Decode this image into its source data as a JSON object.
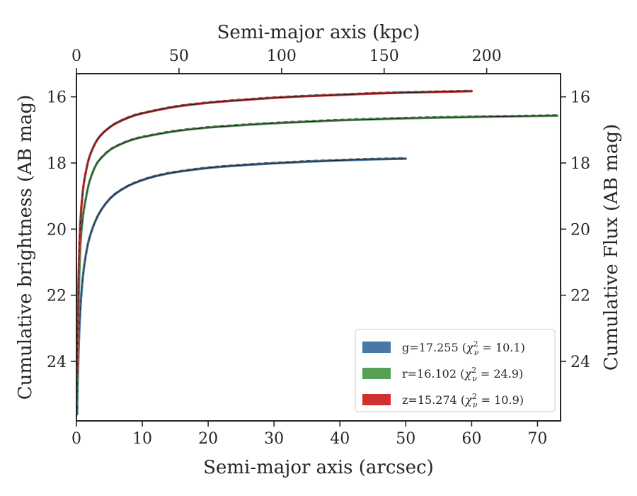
{
  "chart_data": {
    "type": "line",
    "title": "",
    "xlabel": "Semi-major axis (arcsec)",
    "xlabel_top": "Semi-major axis (kpc)",
    "ylabel": "Cumulative brightness (AB mag)",
    "ylabel_right": "Cumulative Flux (AB mag)",
    "xlim": [
      0,
      73.5
    ],
    "ylim": [
      25.8,
      15.3
    ],
    "y_inverted": true,
    "x_top_lim_kpc": [
      0,
      236
    ],
    "xticks": [
      0,
      10,
      20,
      30,
      40,
      50,
      60,
      70
    ],
    "xticks_top": [
      0,
      50,
      100,
      150,
      200
    ],
    "yticks": [
      16,
      18,
      20,
      22,
      24
    ],
    "grid": false,
    "legend_position": "lower-right",
    "series": [
      {
        "name": "g=17.255 (χ²ᵥ = 10.1)",
        "legend_main": "g=17.255 (",
        "legend_sup": "2",
        "legend_sub": "ν",
        "legend_tail": " = 10.1)",
        "color": "#4878a8",
        "x": [
          0.1,
          0.3,
          0.6,
          1,
          1.5,
          2,
          3,
          4,
          5,
          6,
          8,
          10,
          12,
          15,
          20,
          25,
          30,
          35,
          40,
          45,
          50
        ],
        "y": [
          25.6,
          23.8,
          22.4,
          21.4,
          20.7,
          20.25,
          19.7,
          19.35,
          19.1,
          18.92,
          18.68,
          18.52,
          18.4,
          18.28,
          18.15,
          18.07,
          18.01,
          17.96,
          17.92,
          17.89,
          17.87
        ]
      },
      {
        "name": "r=16.102 (χ²ᵥ = 24.9)",
        "legend_main": "r=16.102 (",
        "legend_sup": "2",
        "legend_sub": "ν",
        "legend_tail": " = 24.9)",
        "color": "#55a055",
        "x": [
          0.1,
          0.3,
          0.6,
          1,
          1.5,
          2,
          3,
          4,
          5,
          6,
          8,
          10,
          15,
          20,
          25,
          30,
          40,
          50,
          60,
          70,
          73
        ],
        "y": [
          25.3,
          22.4,
          20.5,
          19.6,
          19.0,
          18.55,
          18.05,
          17.8,
          17.62,
          17.5,
          17.33,
          17.22,
          17.04,
          16.93,
          16.86,
          16.8,
          16.71,
          16.65,
          16.61,
          16.58,
          16.57
        ]
      },
      {
        "name": "z=15.274 (χ²ᵥ = 10.9)",
        "legend_main": "z=15.274 (",
        "legend_sup": "2",
        "legend_sub": "ν",
        "legend_tail": " = 10.9)",
        "color": "#d03030",
        "x": [
          0.1,
          0.3,
          0.6,
          1,
          1.5,
          2,
          3,
          4,
          5,
          6,
          8,
          10,
          15,
          20,
          25,
          30,
          35,
          40,
          45,
          50,
          55,
          60
        ],
        "y": [
          24.5,
          21.7,
          19.8,
          18.8,
          18.2,
          17.8,
          17.35,
          17.1,
          16.93,
          16.8,
          16.62,
          16.5,
          16.3,
          16.18,
          16.1,
          16.03,
          15.98,
          15.94,
          15.9,
          15.87,
          15.85,
          15.83
        ]
      }
    ]
  }
}
